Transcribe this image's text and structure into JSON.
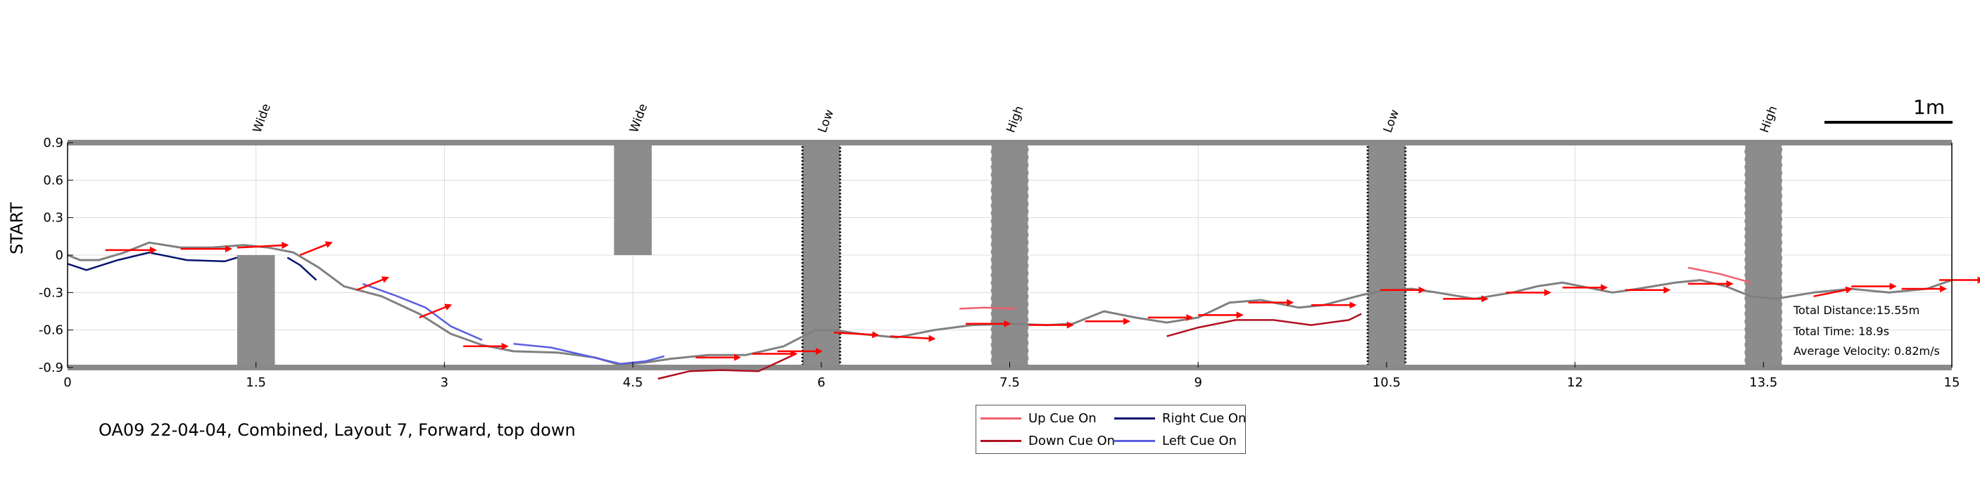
{
  "chart_data": {
    "type": "line",
    "y_axis_label": "START",
    "xlim": [
      0,
      15
    ],
    "ylim": [
      -0.9,
      0.9
    ],
    "x_ticks": [
      "0",
      "1.5",
      "3",
      "4.5",
      "6",
      "7.5",
      "9",
      "10.5",
      "12",
      "13.5",
      "15"
    ],
    "x_tick_values": [
      0,
      1.5,
      3,
      4.5,
      6,
      7.5,
      9,
      10.5,
      12,
      13.5,
      15
    ],
    "y_ticks": [
      "0.9",
      "0.6",
      "0.3",
      "0",
      "-0.3",
      "-0.6",
      "-0.9"
    ],
    "y_tick_values": [
      0.9,
      0.6,
      0.3,
      0,
      -0.3,
      -0.6,
      -0.9
    ],
    "grid": true,
    "scale_bar_label": "1m",
    "obstacles": [
      {
        "label": "Wide",
        "x": [
          1.35,
          1.65
        ],
        "y": [
          -0.9,
          0
        ],
        "style": "solid"
      },
      {
        "label": "Wide",
        "x": [
          4.35,
          4.65
        ],
        "y": [
          0,
          0.9
        ],
        "style": "solid"
      },
      {
        "label": "Low",
        "x": [
          5.85,
          6.15
        ],
        "y": [
          -0.9,
          0.9
        ],
        "style": "dotted"
      },
      {
        "label": "High",
        "x": [
          7.35,
          7.65
        ],
        "y": [
          -0.9,
          0.9
        ],
        "style": "dashed"
      },
      {
        "label": "Low",
        "x": [
          10.35,
          10.65
        ],
        "y": [
          -0.9,
          0.9
        ],
        "style": "dotted"
      },
      {
        "label": "High",
        "x": [
          13.35,
          13.65
        ],
        "y": [
          -0.9,
          0.9
        ],
        "style": "dashed"
      }
    ],
    "trajectory": {
      "x": [
        0,
        0.1,
        0.25,
        0.45,
        0.65,
        0.9,
        1.15,
        1.4,
        1.6,
        1.8,
        2.0,
        2.2,
        2.5,
        2.8,
        3.05,
        3.3,
        3.55,
        3.9,
        4.2,
        4.4,
        4.6,
        4.8,
        5.1,
        5.4,
        5.7,
        5.95,
        6.1,
        6.3,
        6.6,
        6.9,
        7.2,
        7.5,
        7.8,
        8.0,
        8.25,
        8.5,
        8.75,
        9.0,
        9.25,
        9.5,
        9.8,
        10.0,
        10.3,
        10.5,
        10.7,
        10.9,
        11.2,
        11.5,
        11.7,
        11.9,
        12.1,
        12.3,
        12.5,
        12.8,
        13.0,
        13.2,
        13.4,
        13.6,
        13.9,
        14.2,
        14.5,
        14.8,
        15.0
      ],
      "y": [
        0.0,
        -0.04,
        -0.04,
        0.02,
        0.1,
        0.06,
        0.06,
        0.08,
        0.06,
        0.02,
        -0.1,
        -0.25,
        -0.33,
        -0.47,
        -0.63,
        -0.72,
        -0.77,
        -0.78,
        -0.82,
        -0.88,
        -0.86,
        -0.83,
        -0.8,
        -0.8,
        -0.73,
        -0.6,
        -0.6,
        -0.63,
        -0.66,
        -0.6,
        -0.56,
        -0.55,
        -0.56,
        -0.55,
        -0.45,
        -0.5,
        -0.54,
        -0.5,
        -0.38,
        -0.36,
        -0.42,
        -0.4,
        -0.32,
        -0.28,
        -0.27,
        -0.3,
        -0.35,
        -0.3,
        -0.25,
        -0.22,
        -0.26,
        -0.3,
        -0.27,
        -0.22,
        -0.2,
        -0.25,
        -0.33,
        -0.35,
        -0.3,
        -0.27,
        -0.3,
        -0.27,
        -0.2
      ]
    },
    "cue_segments": [
      {
        "cue": "Right Cue On",
        "x": [
          0,
          0.15,
          0.4,
          0.65,
          0.95,
          1.25,
          1.35
        ],
        "y": [
          -0.07,
          -0.12,
          -0.04,
          0.02,
          -0.04,
          -0.05,
          -0.02
        ]
      },
      {
        "cue": "Right Cue On",
        "x": [
          1.75,
          1.85,
          1.98
        ],
        "y": [
          -0.02,
          -0.08,
          -0.2
        ]
      },
      {
        "cue": "Left Cue On",
        "x": [
          2.35,
          2.6,
          2.85,
          3.05,
          3.3
        ],
        "y": [
          -0.23,
          -0.32,
          -0.42,
          -0.57,
          -0.68
        ]
      },
      {
        "cue": "Left Cue On",
        "x": [
          3.55,
          3.85,
          4.15,
          4.4,
          4.6,
          4.75
        ],
        "y": [
          -0.71,
          -0.74,
          -0.81,
          -0.87,
          -0.85,
          -0.81
        ]
      },
      {
        "cue": "Down Cue On",
        "x": [
          4.7,
          4.95,
          5.2,
          5.5,
          5.8
        ],
        "y": [
          -0.99,
          -0.93,
          -0.92,
          -0.93,
          -0.79
        ]
      },
      {
        "cue": "Up Cue On",
        "x": [
          7.1,
          7.3,
          7.55
        ],
        "y": [
          -0.43,
          -0.42,
          -0.43
        ]
      },
      {
        "cue": "Down Cue On",
        "x": [
          8.75,
          9.0,
          9.3,
          9.6,
          9.9,
          10.2,
          10.3
        ],
        "y": [
          -0.65,
          -0.58,
          -0.52,
          -0.52,
          -0.56,
          -0.52,
          -0.47
        ]
      },
      {
        "cue": "Up Cue On",
        "x": [
          12.9,
          13.15,
          13.4
        ],
        "y": [
          -0.1,
          -0.15,
          -0.22
        ]
      }
    ],
    "heading_arrows": [
      {
        "x": 0.3,
        "y": 0.04,
        "dx": 0.4,
        "dy": 0.0
      },
      {
        "x": 0.9,
        "y": 0.05,
        "dx": 0.4,
        "dy": 0.0
      },
      {
        "x": 1.35,
        "y": 0.06,
        "dx": 0.4,
        "dy": 0.02
      },
      {
        "x": 1.85,
        "y": 0.0,
        "dx": 0.25,
        "dy": 0.1
      },
      {
        "x": 2.3,
        "y": -0.28,
        "dx": 0.25,
        "dy": 0.1
      },
      {
        "x": 2.8,
        "y": -0.5,
        "dx": 0.25,
        "dy": 0.1
      },
      {
        "x": 3.15,
        "y": -0.73,
        "dx": 0.35,
        "dy": 0.0
      },
      {
        "x": 5.0,
        "y": -0.82,
        "dx": 0.35,
        "dy": 0.0
      },
      {
        "x": 5.45,
        "y": -0.79,
        "dx": 0.35,
        "dy": 0.0
      },
      {
        "x": 5.65,
        "y": -0.77,
        "dx": 0.35,
        "dy": 0.0
      },
      {
        "x": 6.1,
        "y": -0.62,
        "dx": 0.35,
        "dy": -0.02
      },
      {
        "x": 6.55,
        "y": -0.65,
        "dx": 0.35,
        "dy": -0.02
      },
      {
        "x": 7.15,
        "y": -0.55,
        "dx": 0.35,
        "dy": 0.0
      },
      {
        "x": 7.65,
        "y": -0.56,
        "dx": 0.35,
        "dy": 0.0
      },
      {
        "x": 8.1,
        "y": -0.53,
        "dx": 0.35,
        "dy": 0.0
      },
      {
        "x": 8.6,
        "y": -0.5,
        "dx": 0.35,
        "dy": 0.0
      },
      {
        "x": 9.0,
        "y": -0.48,
        "dx": 0.35,
        "dy": 0.0
      },
      {
        "x": 9.4,
        "y": -0.38,
        "dx": 0.35,
        "dy": 0.0
      },
      {
        "x": 9.9,
        "y": -0.4,
        "dx": 0.35,
        "dy": 0.0
      },
      {
        "x": 10.45,
        "y": -0.28,
        "dx": 0.35,
        "dy": 0.0
      },
      {
        "x": 10.95,
        "y": -0.35,
        "dx": 0.35,
        "dy": 0.0
      },
      {
        "x": 11.45,
        "y": -0.3,
        "dx": 0.35,
        "dy": 0.0
      },
      {
        "x": 11.9,
        "y": -0.26,
        "dx": 0.35,
        "dy": 0.0
      },
      {
        "x": 12.4,
        "y": -0.28,
        "dx": 0.35,
        "dy": 0.0
      },
      {
        "x": 12.9,
        "y": -0.23,
        "dx": 0.35,
        "dy": 0.0
      },
      {
        "x": 13.9,
        "y": -0.33,
        "dx": 0.3,
        "dy": 0.06
      },
      {
        "x": 14.2,
        "y": -0.25,
        "dx": 0.35,
        "dy": 0.0
      },
      {
        "x": 14.6,
        "y": -0.27,
        "dx": 0.35,
        "dy": 0.0
      },
      {
        "x": 14.9,
        "y": -0.2,
        "dx": 0.35,
        "dy": 0.0
      }
    ],
    "colors": {
      "trajectory": "#808080",
      "up_cue": "#f06070",
      "down_cue": "#b01020",
      "right_cue": "#0a1470",
      "left_cue": "#5b5ee0",
      "arrow": "#ff0000",
      "obstacle": "#8c8c8c",
      "boundary": "#8a8a8a"
    }
  },
  "stats": {
    "total_distance": "Total Distance:15.55m",
    "total_time": "Total Time: 18.9s",
    "average_velocity": "Average Velocity: 0.82m/s"
  },
  "caption": "OA09 22-04-04, Combined, Layout 7, Forward, top down",
  "legend": {
    "up": "Up Cue On",
    "right": "Right Cue On",
    "down": "Down Cue On",
    "left": "Left Cue On"
  }
}
